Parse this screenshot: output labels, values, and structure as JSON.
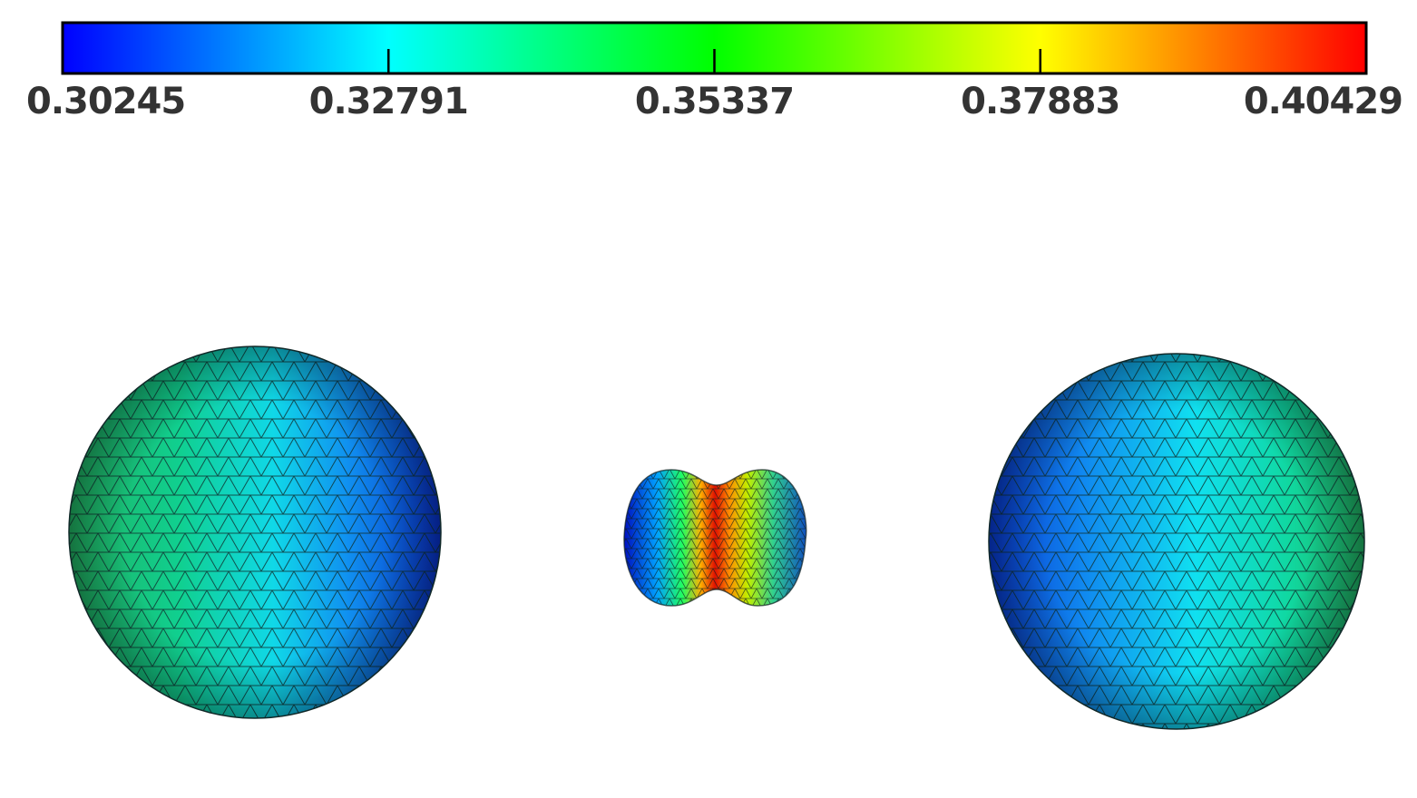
{
  "chart_data": {
    "type": "colorbar",
    "xlim": [
      0.30245,
      0.40429
    ],
    "xticks": [
      0.30245,
      0.32791,
      0.35337,
      0.37883,
      0.40429
    ],
    "colormap": [
      "#0000ff",
      "#00ffff",
      "#00ff00",
      "#ffff00",
      "#ff0000"
    ]
  }
}
